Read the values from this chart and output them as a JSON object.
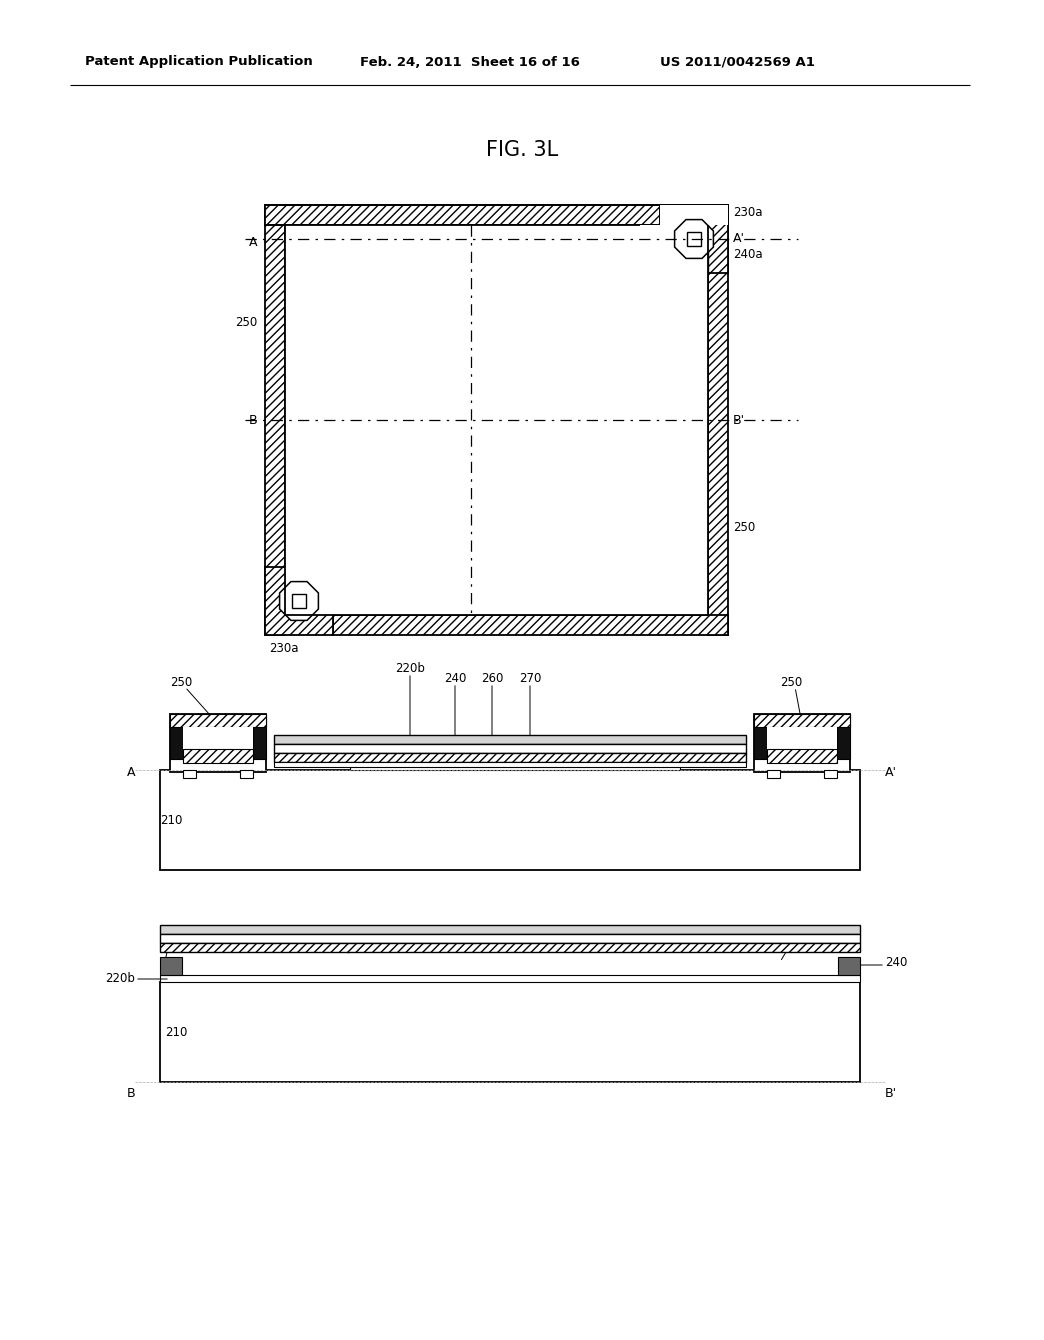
{
  "title": "FIG. 3L",
  "header_left": "Patent Application Publication",
  "header_mid": "Feb. 24, 2011  Sheet 16 of 16",
  "header_right": "US 2011/0042569 A1",
  "bg_color": "#ffffff"
}
